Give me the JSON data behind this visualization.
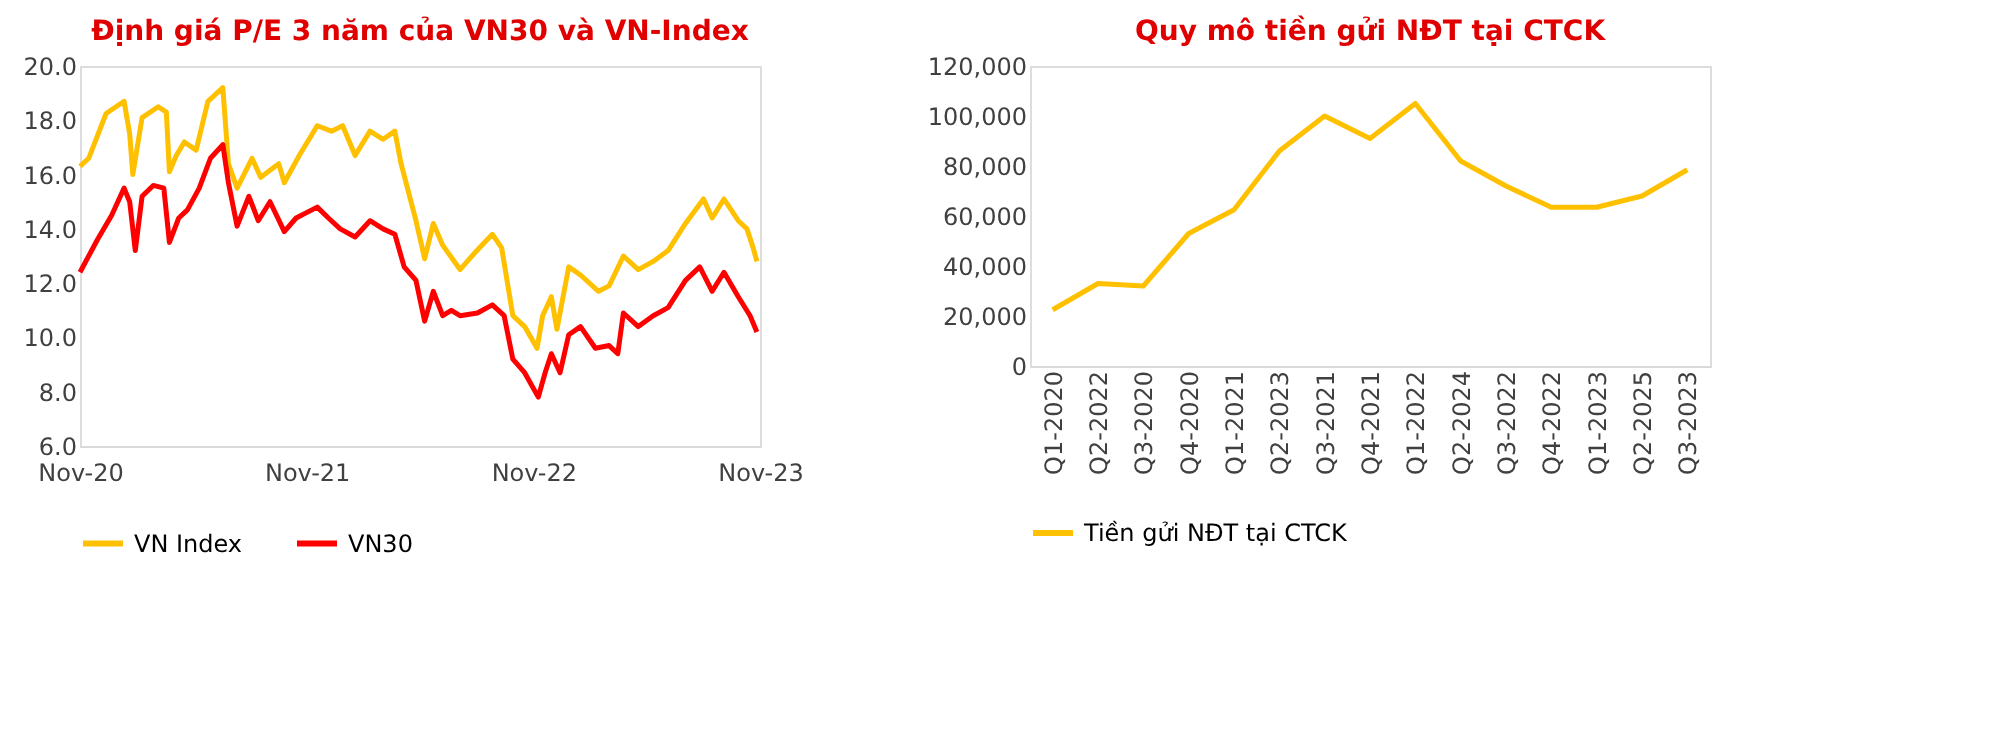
{
  "chart_data": [
    {
      "type": "line",
      "title": "Định giá P/E 3 năm của VN30 và VN-Index",
      "legend": "bottom",
      "grid": false,
      "xlim": [
        "2020-11-01",
        "2023-11-01"
      ],
      "xticks": [
        {
          "value": "2020-11-01",
          "label": "Nov-20"
        },
        {
          "value": "2021-11-01",
          "label": "Nov-21"
        },
        {
          "value": "2022-11-01",
          "label": "Nov-22"
        },
        {
          "value": "2023-11-01",
          "label": "Nov-23"
        }
      ],
      "ylim": [
        6,
        20
      ],
      "yticks": [
        {
          "value": 6,
          "label": "6.0"
        },
        {
          "value": 8,
          "label": "8.0"
        },
        {
          "value": 10,
          "label": "10.0"
        },
        {
          "value": 12,
          "label": "12.0"
        },
        {
          "value": 14,
          "label": "14.0"
        },
        {
          "value": 16,
          "label": "16.0"
        },
        {
          "value": 18,
          "label": "18.0"
        },
        {
          "value": 20,
          "label": "20.0"
        }
      ],
      "series": [
        {
          "name": "VN Index",
          "color": "#ffc000",
          "x": [
            "2020-11-01",
            "2020-11-15",
            "2020-12-13",
            "2021-01-11",
            "2021-01-20",
            "2021-01-25",
            "2021-02-09",
            "2021-03-07",
            "2021-03-20",
            "2021-03-25",
            "2021-04-05",
            "2021-04-18",
            "2021-05-07",
            "2021-05-26",
            "2021-06-19",
            "2021-06-28",
            "2021-07-12",
            "2021-08-05",
            "2021-08-19",
            "2021-09-17",
            "2021-09-26",
            "2021-10-20",
            "2021-11-18",
            "2021-12-11",
            "2021-12-29",
            "2022-01-18",
            "2022-02-11",
            "2022-03-04",
            "2022-03-23",
            "2022-04-02",
            "2022-04-26",
            "2022-05-10",
            "2022-05-24",
            "2022-06-08",
            "2022-07-06",
            "2022-07-29",
            "2022-08-27",
            "2022-09-11",
            "2022-09-29",
            "2022-10-18",
            "2022-11-07",
            "2022-11-16",
            "2022-11-30",
            "2022-12-09",
            "2022-12-28",
            "2023-01-16",
            "2023-02-14",
            "2023-03-03",
            "2023-03-26",
            "2023-04-19",
            "2023-05-13",
            "2023-06-06",
            "2023-07-04",
            "2023-08-02",
            "2023-08-16",
            "2023-09-04",
            "2023-09-27",
            "2023-10-11",
            "2023-10-21",
            "2023-10-27"
          ],
          "values": [
            16.3,
            16.6,
            18.25,
            18.7,
            17.5,
            16.0,
            18.1,
            18.5,
            18.3,
            16.1,
            16.7,
            17.2,
            16.9,
            18.7,
            19.2,
            16.4,
            15.5,
            16.6,
            15.9,
            16.4,
            15.7,
            16.7,
            17.8,
            17.6,
            17.8,
            16.7,
            17.6,
            17.3,
            17.6,
            16.4,
            14.3,
            12.9,
            14.2,
            13.4,
            12.5,
            13.1,
            13.8,
            13.3,
            10.8,
            10.4,
            9.6,
            10.8,
            11.5,
            10.3,
            12.6,
            12.3,
            11.7,
            11.9,
            13.0,
            12.5,
            12.8,
            13.2,
            14.2,
            15.1,
            14.4,
            15.1,
            14.3,
            14.0,
            13.3,
            12.8
          ]
        },
        {
          "name": "VN30",
          "color": "#ff0000",
          "x": [
            "2020-11-01",
            "2020-11-29",
            "2020-12-22",
            "2021-01-11",
            "2021-01-20",
            "2021-01-29",
            "2021-02-09",
            "2021-02-27",
            "2021-03-16",
            "2021-03-25",
            "2021-04-09",
            "2021-04-23",
            "2021-05-12",
            "2021-05-30",
            "2021-06-19",
            "2021-06-28",
            "2021-07-12",
            "2021-07-31",
            "2021-08-15",
            "2021-09-03",
            "2021-09-26",
            "2021-10-15",
            "2021-11-18",
            "2021-12-06",
            "2021-12-25",
            "2022-01-18",
            "2022-02-11",
            "2022-03-04",
            "2022-03-23",
            "2022-04-07",
            "2022-04-26",
            "2022-05-10",
            "2022-05-24",
            "2022-06-08",
            "2022-06-22",
            "2022-07-06",
            "2022-08-03",
            "2022-08-27",
            "2022-09-15",
            "2022-09-29",
            "2022-10-18",
            "2022-11-09",
            "2022-11-20",
            "2022-11-30",
            "2022-12-14",
            "2022-12-28",
            "2023-01-16",
            "2023-02-09",
            "2023-03-03",
            "2023-03-17",
            "2023-03-26",
            "2023-04-19",
            "2023-05-13",
            "2023-06-06",
            "2023-07-04",
            "2023-07-27",
            "2023-08-16",
            "2023-09-04",
            "2023-09-27",
            "2023-10-16",
            "2023-10-27"
          ],
          "values": [
            12.4,
            13.6,
            14.5,
            15.5,
            15.0,
            13.2,
            15.2,
            15.6,
            15.5,
            13.5,
            14.4,
            14.7,
            15.5,
            16.6,
            17.1,
            15.7,
            14.1,
            15.2,
            14.3,
            15.0,
            13.9,
            14.4,
            14.8,
            14.4,
            14.0,
            13.7,
            14.3,
            14.0,
            13.8,
            12.6,
            12.1,
            10.6,
            11.7,
            10.8,
            11.0,
            10.8,
            10.9,
            11.2,
            10.8,
            9.2,
            8.7,
            7.8,
            8.7,
            9.4,
            8.7,
            10.1,
            10.4,
            9.6,
            9.7,
            9.4,
            10.9,
            10.4,
            10.8,
            11.1,
            12.1,
            12.6,
            11.7,
            12.4,
            11.5,
            10.8,
            10.2
          ]
        }
      ]
    },
    {
      "type": "line",
      "title": "Quy mô tiền gửi NĐT tại CTCK",
      "legend": "bottom",
      "grid": false,
      "categories": [
        "Q1-2020",
        "Q2-2022",
        "Q3-2020",
        "Q4-2020",
        "Q1-2021",
        "Q2-2023",
        "Q3-2021",
        "Q4-2021",
        "Q1-2022",
        "Q2-2024",
        "Q3-2022",
        "Q4-2022",
        "Q1-2023",
        "Q2-2025",
        "Q3-2023"
      ],
      "ylim": [
        0,
        120000
      ],
      "yticks": [
        0,
        {
          "value": 20000,
          "label": "20,000"
        },
        {
          "value": 40000,
          "label": "40,000"
        },
        {
          "value": 60000,
          "label": "60,000"
        },
        {
          "value": 80000,
          "label": "80,000"
        },
        {
          "value": 100000,
          "label": "100,000"
        },
        {
          "value": 120000,
          "label": "120,000"
        }
      ],
      "series": [
        {
          "name": "Tiền gửi NĐT tại CTCK",
          "color": "#ffc000",
          "values": [
            22500,
            33000,
            32000,
            53000,
            62500,
            86000,
            100000,
            91000,
            105000,
            82000,
            72000,
            63500,
            63500,
            68000,
            78500
          ]
        }
      ]
    }
  ]
}
